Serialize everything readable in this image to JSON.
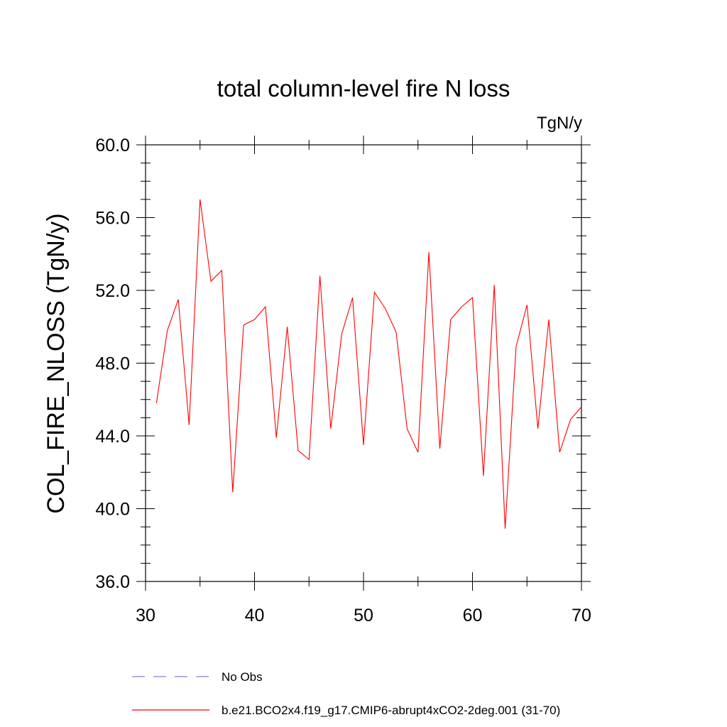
{
  "chart_data": {
    "type": "line",
    "title": "total column-level fire N loss",
    "units": "TgN/y",
    "xlabel": "",
    "ylabel": "COL_FIRE_NLOSS  (TgN/y)",
    "xlim": [
      30,
      70
    ],
    "ylim": [
      36.0,
      60.0
    ],
    "x_ticks": [
      "30",
      "40",
      "50",
      "60",
      "70"
    ],
    "y_ticks": [
      "36.0",
      "40.0",
      "44.0",
      "48.0",
      "52.0",
      "56.0",
      "60.0"
    ],
    "grid": false,
    "legend_position": "bottom",
    "series": [
      {
        "name": "b.e21.BCO2x4.f19_g17.CMIP6-abrupt4xCO2-2deg.001 (31-70)",
        "color": "#ff0000",
        "x": [
          31,
          32,
          33,
          34,
          35,
          36,
          37,
          38,
          39,
          40,
          41,
          42,
          43,
          44,
          45,
          46,
          47,
          48,
          49,
          50,
          51,
          52,
          53,
          54,
          55,
          56,
          57,
          58,
          59,
          60,
          61,
          62,
          63,
          64,
          65,
          66,
          67,
          68,
          69,
          70
        ],
        "values": [
          45.8,
          49.8,
          51.5,
          44.6,
          57.0,
          52.5,
          53.1,
          40.9,
          50.1,
          50.4,
          51.1,
          43.9,
          50.0,
          43.2,
          42.7,
          52.8,
          44.4,
          49.6,
          51.6,
          43.5,
          51.9,
          51.0,
          49.7,
          44.4,
          43.1,
          54.1,
          43.3,
          50.4,
          51.1,
          51.6,
          41.8,
          52.3,
          38.9,
          48.9,
          51.2,
          44.4,
          50.4,
          43.1,
          44.9,
          45.6
        ]
      }
    ],
    "legend": [
      {
        "label": "No Obs",
        "color": "#7f7fd6",
        "style": "dashed"
      },
      {
        "label": "b.e21.BCO2x4.f19_g17.CMIP6-abrupt4xCO2-2deg.001 (31-70)",
        "color": "#ff0000",
        "style": "solid"
      }
    ]
  }
}
